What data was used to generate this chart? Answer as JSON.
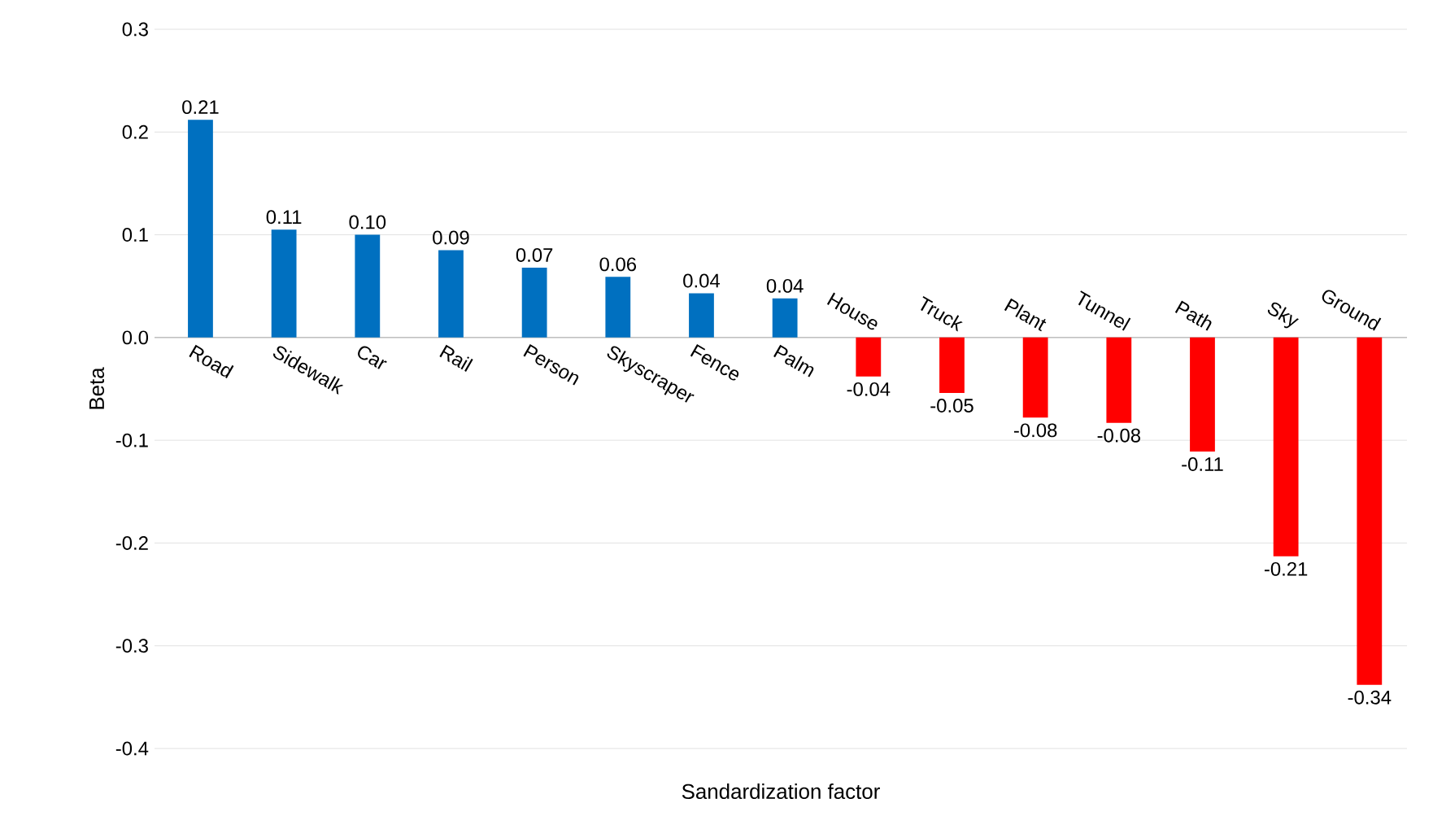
{
  "chart_data": {
    "type": "bar",
    "xlabel": "Sandardization factor",
    "ylabel": "Beta",
    "categories": [
      "Road",
      "Sidewalk",
      "Car",
      "Rail",
      "Person",
      "Skyscraper",
      "Fence",
      "Palm",
      "House",
      "Truck",
      "Plant",
      "Tunnel",
      "Path",
      "Sky",
      "Ground"
    ],
    "values": [
      0.212,
      0.105,
      0.1,
      0.085,
      0.068,
      0.059,
      0.043,
      0.038,
      -0.038,
      -0.054,
      -0.078,
      -0.083,
      -0.111,
      -0.213,
      -0.338
    ],
    "value_labels": [
      "0.21",
      "0.11",
      "0.10",
      "0.09",
      "0.07",
      "0.06",
      "0.04",
      "0.04",
      "-0.04",
      "-0.05",
      "-0.08",
      "-0.08",
      "-0.11",
      "-0.21",
      "-0.34"
    ],
    "colors": [
      "#0070c0",
      "#0070c0",
      "#0070c0",
      "#0070c0",
      "#0070c0",
      "#0070c0",
      "#0070c0",
      "#0070c0",
      "#ff0000",
      "#ff0000",
      "#ff0000",
      "#ff0000",
      "#ff0000",
      "#ff0000",
      "#ff0000"
    ],
    "ylim": [
      -0.4,
      0.3
    ],
    "yticks": [
      -0.4,
      -0.3,
      -0.2,
      -0.1,
      {
        "value": 0,
        "label": "0.0"
      },
      0.1,
      0.2,
      0.3
    ],
    "grid": "y"
  }
}
